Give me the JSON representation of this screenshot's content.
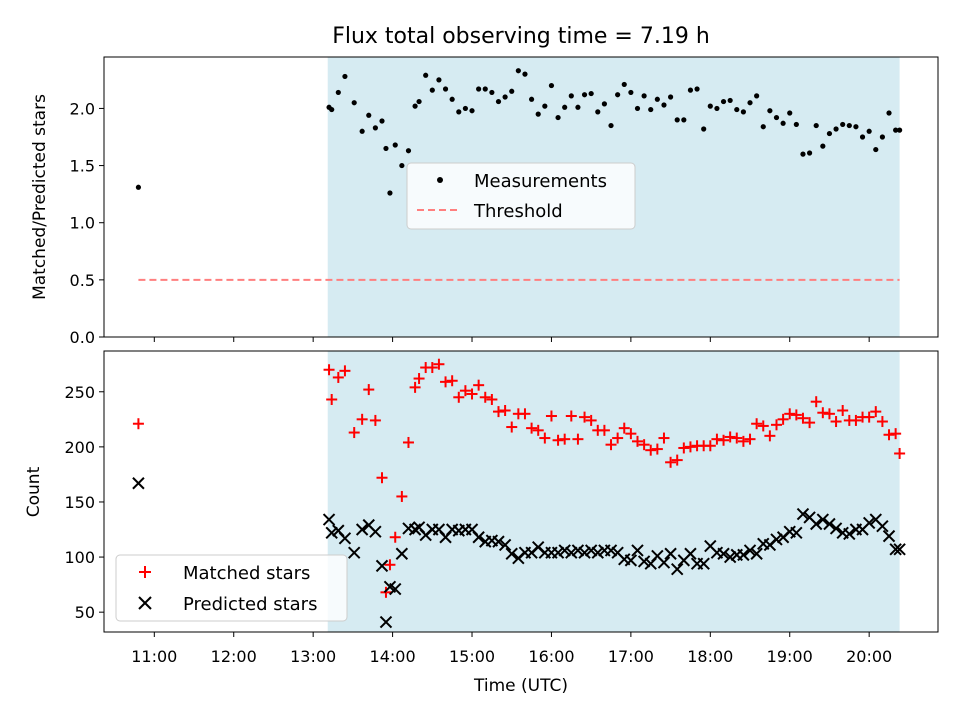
{
  "figure": {
    "title": "Flux total observing time = 7.19 h"
  },
  "chart_data": [
    {
      "type": "scatter",
      "title": "Flux total observing time = 7.19 h",
      "xlabel": "",
      "ylabel": "Matched/Predicted stars",
      "xlim": [
        "10:22",
        "20:52"
      ],
      "ylim": [
        0,
        2.45
      ],
      "yticks": [
        "0.0",
        "0.5",
        "1.0",
        "1.5",
        "2.0"
      ],
      "shaded_region": {
        "x": [
          "13:11",
          "20:23"
        ],
        "color": "#add8e6"
      },
      "legend": {
        "placement": "center",
        "entries": [
          "Measurements",
          "Threshold"
        ]
      },
      "series": [
        {
          "name": "Measurements",
          "marker": "dot",
          "color": "#000000",
          "x": [
            "10:48",
            "13:12",
            "13:14",
            "13:19",
            "13:24",
            "13:31",
            "13:37",
            "13:42",
            "13:47",
            "13:52",
            "13:55",
            "13:58",
            "14:02",
            "14:07",
            "14:12",
            "14:17",
            "14:20",
            "14:25",
            "14:30",
            "14:35",
            "14:40",
            "14:45",
            "14:50",
            "14:55",
            "15:00",
            "15:05",
            "15:10",
            "15:15",
            "15:20",
            "15:25",
            "15:30",
            "15:35",
            "15:40",
            "15:45",
            "15:50",
            "15:55",
            "16:00",
            "16:05",
            "16:10",
            "16:15",
            "16:20",
            "16:25",
            "16:30",
            "16:35",
            "16:40",
            "16:45",
            "16:50",
            "16:55",
            "17:00",
            "17:05",
            "17:10",
            "17:15",
            "17:20",
            "17:25",
            "17:30",
            "17:35",
            "17:40",
            "17:45",
            "17:50",
            "17:55",
            "18:00",
            "18:05",
            "18:10",
            "18:15",
            "18:20",
            "18:25",
            "18:30",
            "18:35",
            "18:40",
            "18:45",
            "18:50",
            "18:55",
            "19:00",
            "19:05",
            "19:10",
            "19:15",
            "19:20",
            "19:25",
            "19:30",
            "19:35",
            "19:40",
            "19:45",
            "19:50",
            "19:55",
            "20:00",
            "20:05",
            "20:10",
            "20:15",
            "20:20",
            "20:23"
          ],
          "y": [
            1.31,
            2.01,
            1.99,
            2.14,
            2.28,
            2.05,
            1.8,
            1.94,
            1.83,
            1.89,
            1.65,
            1.26,
            1.68,
            1.5,
            1.63,
            2.02,
            2.06,
            2.29,
            2.16,
            2.25,
            2.17,
            2.08,
            1.97,
            2.0,
            1.98,
            2.17,
            2.17,
            2.14,
            2.06,
            2.1,
            2.15,
            2.33,
            2.3,
            2.08,
            1.95,
            2.02,
            2.2,
            1.92,
            2.01,
            2.11,
            2.01,
            2.12,
            2.13,
            1.97,
            2.04,
            1.85,
            2.12,
            2.21,
            2.14,
            2.0,
            2.11,
            1.99,
            2.08,
            2.03,
            2.1,
            1.9,
            1.9,
            2.16,
            2.17,
            1.82,
            2.02,
            2.0,
            2.06,
            2.07,
            1.99,
            1.97,
            2.05,
            2.11,
            1.84,
            1.98,
            1.92,
            1.87,
            1.96,
            1.86,
            1.6,
            1.61,
            1.85,
            1.67,
            1.78,
            1.82,
            1.86,
            1.85,
            1.84,
            1.75,
            1.8,
            1.64,
            1.75,
            1.96,
            1.81,
            1.81
          ]
        },
        {
          "name": "Threshold",
          "style": "dashed",
          "color": "#ff7f7f",
          "x": [
            "10:48",
            "20:23"
          ],
          "y": [
            0.5,
            0.5
          ]
        }
      ]
    },
    {
      "type": "scatter",
      "title": "",
      "xlabel": "Time (UTC)",
      "ylabel": "Count",
      "xlim": [
        "10:22",
        "20:52"
      ],
      "ylim": [
        32,
        287
      ],
      "xticks": [
        "11:00",
        "12:00",
        "13:00",
        "14:00",
        "15:00",
        "16:00",
        "17:00",
        "18:00",
        "19:00",
        "20:00"
      ],
      "yticks": [
        "50",
        "100",
        "150",
        "200",
        "250"
      ],
      "shaded_region": {
        "x": [
          "13:11",
          "20:23"
        ],
        "color": "#add8e6"
      },
      "legend": {
        "placement": "lower left",
        "entries": [
          "Matched stars",
          "Predicted stars"
        ]
      },
      "series": [
        {
          "name": "Matched stars",
          "marker": "plus",
          "color": "#ff0000",
          "x": [
            "10:48",
            "13:12",
            "13:14",
            "13:19",
            "13:24",
            "13:31",
            "13:37",
            "13:42",
            "13:47",
            "13:52",
            "13:55",
            "13:58",
            "14:02",
            "14:07",
            "14:12",
            "14:17",
            "14:20",
            "14:25",
            "14:30",
            "14:35",
            "14:40",
            "14:45",
            "14:50",
            "14:55",
            "15:00",
            "15:05",
            "15:10",
            "15:15",
            "15:20",
            "15:25",
            "15:30",
            "15:35",
            "15:40",
            "15:45",
            "15:50",
            "15:55",
            "16:00",
            "16:05",
            "16:10",
            "16:15",
            "16:20",
            "16:25",
            "16:30",
            "16:35",
            "16:40",
            "16:45",
            "16:50",
            "16:55",
            "17:00",
            "17:05",
            "17:10",
            "17:15",
            "17:20",
            "17:25",
            "17:30",
            "17:35",
            "17:40",
            "17:45",
            "17:50",
            "17:55",
            "18:00",
            "18:05",
            "18:10",
            "18:15",
            "18:20",
            "18:25",
            "18:30",
            "18:35",
            "18:40",
            "18:45",
            "18:50",
            "18:55",
            "19:00",
            "19:05",
            "19:10",
            "19:15",
            "19:20",
            "19:25",
            "19:30",
            "19:35",
            "19:40",
            "19:45",
            "19:50",
            "19:55",
            "20:00",
            "20:05",
            "20:10",
            "20:15",
            "20:20",
            "20:23"
          ],
          "y": [
            221,
            270,
            243,
            263,
            269,
            213,
            225,
            252,
            224,
            172,
            68,
            93,
            118,
            155,
            204,
            254,
            262,
            272,
            272,
            275,
            259,
            260,
            245,
            251,
            248,
            256,
            245,
            243,
            232,
            233,
            218,
            230,
            230,
            217,
            215,
            208,
            228,
            206,
            207,
            228,
            207,
            227,
            224,
            215,
            215,
            202,
            208,
            217,
            212,
            205,
            202,
            197,
            198,
            208,
            186,
            188,
            199,
            200,
            201,
            201,
            201,
            207,
            206,
            209,
            208,
            205,
            207,
            221,
            219,
            210,
            220,
            225,
            230,
            229,
            226,
            222,
            241,
            231,
            230,
            223,
            233,
            224,
            224,
            227,
            227,
            232,
            223,
            211,
            212,
            194
          ]
        },
        {
          "name": "Predicted stars",
          "marker": "x",
          "color": "#000000",
          "x": [
            "10:48",
            "13:12",
            "13:14",
            "13:19",
            "13:24",
            "13:31",
            "13:37",
            "13:42",
            "13:47",
            "13:52",
            "13:55",
            "13:58",
            "14:02",
            "14:07",
            "14:12",
            "14:17",
            "14:20",
            "14:25",
            "14:30",
            "14:35",
            "14:40",
            "14:45",
            "14:50",
            "14:55",
            "15:00",
            "15:05",
            "15:10",
            "15:15",
            "15:20",
            "15:25",
            "15:30",
            "15:35",
            "15:40",
            "15:45",
            "15:50",
            "15:55",
            "16:00",
            "16:05",
            "16:10",
            "16:15",
            "16:20",
            "16:25",
            "16:30",
            "16:35",
            "16:40",
            "16:45",
            "16:50",
            "16:55",
            "17:00",
            "17:05",
            "17:10",
            "17:15",
            "17:20",
            "17:25",
            "17:30",
            "17:35",
            "17:40",
            "17:45",
            "17:50",
            "17:55",
            "18:00",
            "18:05",
            "18:10",
            "18:15",
            "18:20",
            "18:25",
            "18:30",
            "18:35",
            "18:40",
            "18:45",
            "18:50",
            "18:55",
            "19:00",
            "19:05",
            "19:10",
            "19:15",
            "19:20",
            "19:25",
            "19:30",
            "19:35",
            "19:40",
            "19:45",
            "19:50",
            "19:55",
            "20:00",
            "20:05",
            "20:10",
            "20:15",
            "20:20",
            "20:23"
          ],
          "y": [
            167,
            134,
            122,
            124,
            117,
            104,
            125,
            129,
            123,
            92,
            41,
            73,
            71,
            103,
            126,
            125,
            127,
            120,
            125,
            125,
            118,
            125,
            124,
            125,
            125,
            118,
            114,
            115,
            114,
            111,
            103,
            99,
            104,
            104,
            109,
            104,
            104,
            104,
            106,
            104,
            106,
            104,
            106,
            104,
            106,
            106,
            104,
            98,
            97,
            106,
            96,
            94,
            101,
            95,
            103,
            89,
            97,
            103,
            94,
            94,
            110,
            104,
            103,
            100,
            102,
            102,
            106,
            103,
            112,
            111,
            116,
            118,
            123,
            122,
            139,
            136,
            130,
            134,
            130,
            126,
            122,
            121,
            125,
            125,
            131,
            134,
            128,
            119,
            107,
            107
          ]
        }
      ]
    }
  ]
}
